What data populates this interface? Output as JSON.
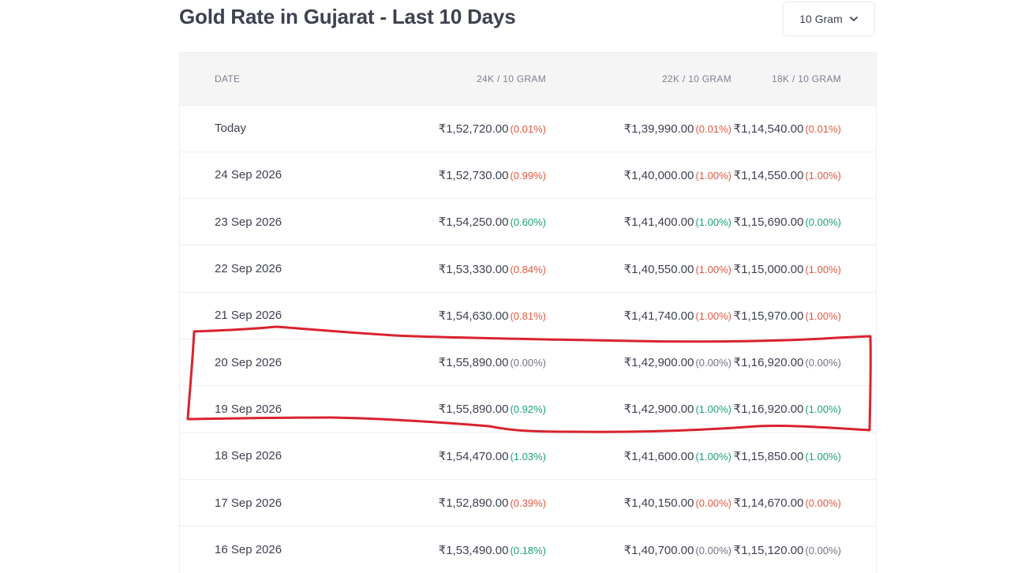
{
  "title": "Gold Rate in Gujarat - Last 10 Days",
  "unit_selector": {
    "selected": "10 Gram",
    "icon": "chevron-down-icon"
  },
  "colors": {
    "increase": "#e0573f",
    "decrease": "#1aa07a",
    "neutral": "#6f7380",
    "annotation": "#d9232e"
  },
  "table": {
    "headers": {
      "date": "DATE",
      "k24": "24K / 10 GRAM",
      "k22": "22K / 10 GRAM",
      "k18": "18K / 10 GRAM"
    },
    "rows": [
      {
        "date": "Today",
        "k24": "₹1,52,720.00",
        "k24_chg": "(0.01%)",
        "k24_dir": "up",
        "k22": "₹1,39,990.00",
        "k22_chg": "(0.01%)",
        "k22_dir": "up",
        "k18": "₹1,14,540.00",
        "k18_chg": "(0.01%)",
        "k18_dir": "up"
      },
      {
        "date": "24 Sep 2026",
        "k24": "₹1,52,730.00",
        "k24_chg": "(0.99%)",
        "k24_dir": "up",
        "k22": "₹1,40,000.00",
        "k22_chg": "(1.00%)",
        "k22_dir": "up",
        "k18": "₹1,14,550.00",
        "k18_chg": "(1.00%)",
        "k18_dir": "up"
      },
      {
        "date": "23 Sep 2026",
        "k24": "₹1,54,250.00",
        "k24_chg": "(0.60%)",
        "k24_dir": "down",
        "k22": "₹1,41,400.00",
        "k22_chg": "(1.00%)",
        "k22_dir": "down",
        "k18": "₹1,15,690.00",
        "k18_chg": "(0.00%)",
        "k18_dir": "down"
      },
      {
        "date": "22 Sep 2026",
        "k24": "₹1,53,330.00",
        "k24_chg": "(0.84%)",
        "k24_dir": "up",
        "k22": "₹1,40,550.00",
        "k22_chg": "(1.00%)",
        "k22_dir": "up",
        "k18": "₹1,15,000.00",
        "k18_chg": "(1.00%)",
        "k18_dir": "up"
      },
      {
        "date": "21 Sep 2026",
        "k24": "₹1,54,630.00",
        "k24_chg": "(0.81%)",
        "k24_dir": "up",
        "k22": "₹1,41,740.00",
        "k22_chg": "(1.00%)",
        "k22_dir": "up",
        "k18": "₹1,15,970.00",
        "k18_chg": "(1.00%)",
        "k18_dir": "up"
      },
      {
        "date": "20 Sep 2026",
        "k24": "₹1,55,890.00",
        "k24_chg": "(0.00%)",
        "k24_dir": "flat",
        "k22": "₹1,42,900.00",
        "k22_chg": "(0.00%)",
        "k22_dir": "flat",
        "k18": "₹1,16,920.00",
        "k18_chg": "(0.00%)",
        "k18_dir": "flat"
      },
      {
        "date": "19 Sep 2026",
        "k24": "₹1,55,890.00",
        "k24_chg": "(0.92%)",
        "k24_dir": "down",
        "k22": "₹1,42,900.00",
        "k22_chg": "(1.00%)",
        "k22_dir": "down",
        "k18": "₹1,16,920.00",
        "k18_chg": "(1.00%)",
        "k18_dir": "down"
      },
      {
        "date": "18 Sep 2026",
        "k24": "₹1,54,470.00",
        "k24_chg": "(1.03%)",
        "k24_dir": "down",
        "k22": "₹1,41,600.00",
        "k22_chg": "(1.00%)",
        "k22_dir": "down",
        "k18": "₹1,15,850.00",
        "k18_chg": "(1.00%)",
        "k18_dir": "down"
      },
      {
        "date": "17 Sep 2026",
        "k24": "₹1,52,890.00",
        "k24_chg": "(0.39%)",
        "k24_dir": "up",
        "k22": "₹1,40,150.00",
        "k22_chg": "(0.00%)",
        "k22_dir": "up",
        "k18": "₹1,14,670.00",
        "k18_chg": "(0.00%)",
        "k18_dir": "up"
      },
      {
        "date": "16 Sep 2026",
        "k24": "₹1,53,490.00",
        "k24_chg": "(0.18%)",
        "k24_dir": "down",
        "k22": "₹1,40,700.00",
        "k22_chg": "(0.00%)",
        "k22_dir": "flat",
        "k18": "₹1,15,120.00",
        "k18_chg": "(0.00%)",
        "k18_dir": "flat"
      }
    ]
  },
  "highlight": {
    "note": "",
    "rows": [
      "20 Sep 2026",
      "19 Sep 2026"
    ]
  }
}
